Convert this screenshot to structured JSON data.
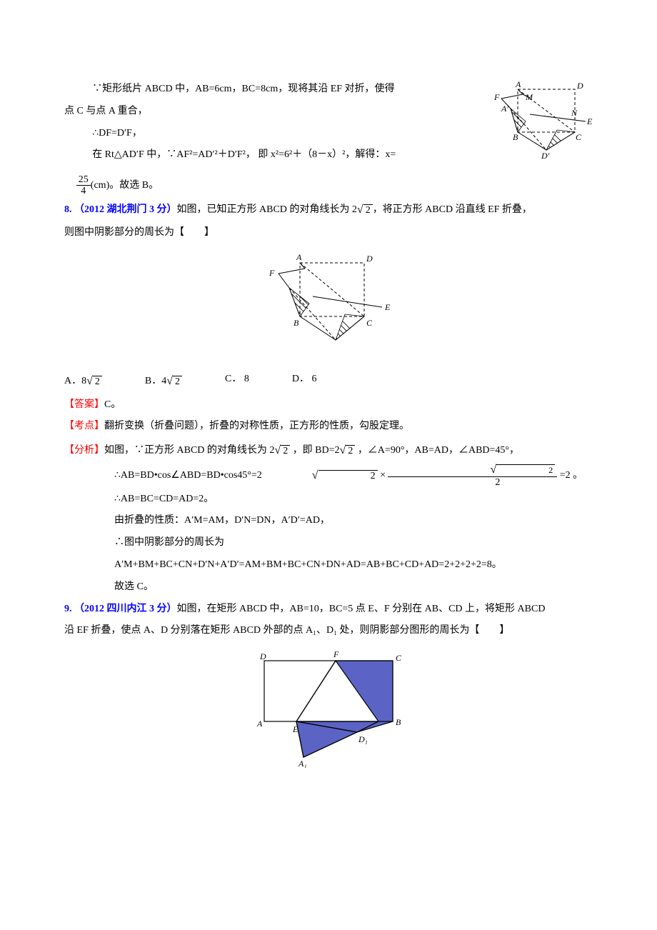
{
  "topfig": {
    "labels": {
      "A": "A",
      "D": "D",
      "F": "F",
      "M": "M",
      "Ap": "A′",
      "N": "N",
      "E": "E",
      "B": "B",
      "Dp": "D′",
      "C": "C"
    },
    "stroke": "#000000",
    "dash": "4,3",
    "hatch": "#000000",
    "bg": "#ffffff"
  },
  "q7": {
    "line1_a": "∵矩形纸片 ABCD 中，AB=6cm，BC=8cm，现将其沿 EF 对折，使得",
    "line1_b": "点 C 与点 A 重合，",
    "line2": "∴DF=D′F，",
    "line3": "在 Rt△AD′F 中，∵AF²=AD′²＋D′F²， 即 x²=6²＋（8－x）²，解得：x=",
    "frac_num": "25",
    "frac_den": "4",
    "frac_tail": "(cm)",
    "tail": "。故选 B。"
  },
  "q8": {
    "num": "8.",
    "src": "（2012 湖北荆门 3 分）",
    "stem_a": "如图，已知正方形 ABCD 的对角线长为 2",
    "stem_b": "，将正方形 ABCD 沿直线 EF 折叠，",
    "stem_c": "则图中阴影部分的周长为【　　】",
    "optA_pre": "A．",
    "optA_coef": "8",
    "optB_pre": "B．",
    "optB_coef": "4",
    "optC": "C．  8",
    "optD": "D．  6",
    "ans_lbl": "【答案】",
    "ans": "C。",
    "kd_lbl": "【考点】",
    "kd": "翻折变换（折叠问题），折叠的对称性质，正方形的性质，勾股定理。",
    "an_lbl": "【分析】",
    "an1_a": "如图，∵正方形 ABCD 的对角线长为 2",
    "an1_b": " ，即 BD=2",
    "an1_c": " ，∠A=90°，AB=AD，∠ABD=45°，",
    "an2_a": "∴AB=BD•cos∠ABD=BD•cos45°=2",
    "an2_b": " =2 。",
    "frac_num": "√2",
    "frac_den": "2",
    "an3": "∴AB=BC=CD=AD=2。",
    "an4": "由折叠的性质：A′M=AM，D′N=DN，A′D′=AD，",
    "an5": "∴图中阴影部分的周长为",
    "an6": "A′M+BM+BC+CN+D′N+A′D′=AM+BM+BC+CN+DN+AD=AB+BC+CD+AD=2+2+2+2=8。",
    "an7": "故选 C。",
    "fig": {
      "labels": {
        "A": "A",
        "D": "D",
        "F": "F",
        "E": "E",
        "B": "B",
        "C": "C"
      },
      "stroke": "#000000",
      "dash": "4,3",
      "hatch": "#000000",
      "bg": "#ffffff"
    }
  },
  "q9": {
    "num": "9.",
    "src": "（2012 四川内江 3 分）",
    "stem_a": "如图，在矩形 ABCD 中，AB=10，BC=5 点 E、F 分别在 AB、CD 上，将矩形 ABCD",
    "stem_b": "沿 EF 折叠，使点 A、D 分别落在矩形 ABCD 外部的点 A₁、D₁ 处，则阴影部分图形的周长为【　　】",
    "fig": {
      "labels": {
        "D": "D",
        "F": "F",
        "C": "C",
        "A": "A",
        "E": "E",
        "B": "B",
        "D1": "D₁",
        "A1": "A₁"
      },
      "stroke": "#000000",
      "fill": "#5b63c4",
      "bg": "#ffffff"
    }
  },
  "colors": {
    "text": "#000000",
    "blue": "#0000ff",
    "red": "#ff0000",
    "figfill": "#5b63c4"
  }
}
